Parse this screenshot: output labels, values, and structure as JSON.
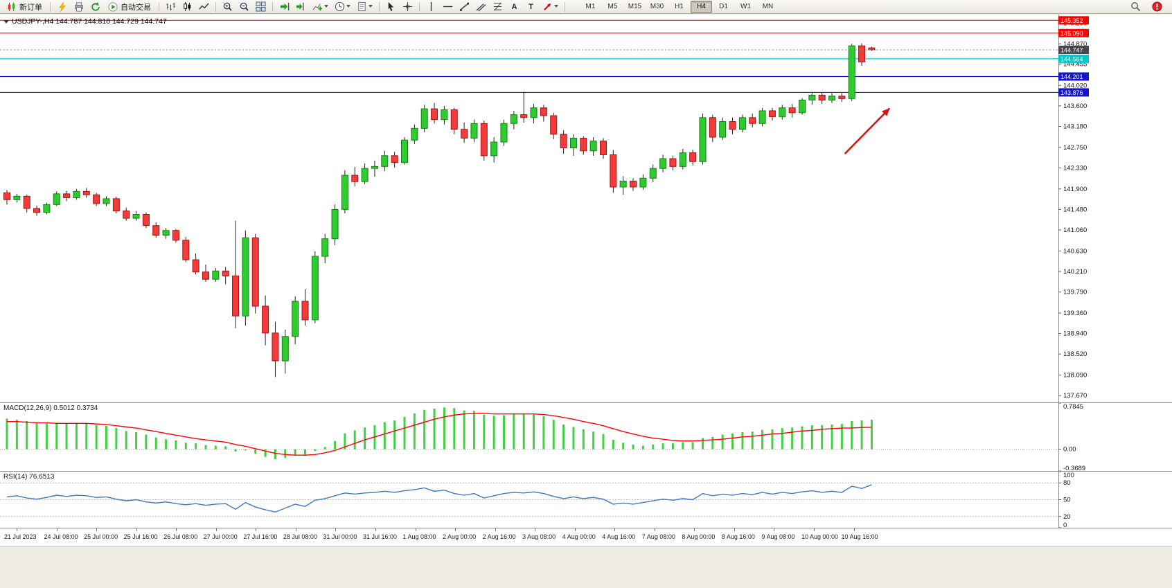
{
  "toolbar": {
    "new_order_label": "新订单",
    "auto_trading_label": "自动交易",
    "timeframes": [
      "M1",
      "M5",
      "M15",
      "M30",
      "H1",
      "H4",
      "D1",
      "W1",
      "MN"
    ],
    "active_timeframe": "H4",
    "icons": {
      "text_glyph": "A",
      "label_glyph": "T"
    }
  },
  "chart": {
    "symbol_title": "USDJPY-,H4 144.787 144.810 144.729 144.747",
    "symbol": "USDJPY-",
    "period": "H4",
    "ohlc_display": {
      "open": "144.787",
      "high": "144.810",
      "low": "144.729",
      "close": "144.747"
    }
  },
  "chart_data": [
    {
      "type": "candlestick",
      "title": "USDJPY-,H4",
      "ylim": [
        137.53,
        145.47
      ],
      "y_ticks": [
        "145.290",
        "144.870",
        "144.455",
        "144.020",
        "143.600",
        "143.180",
        "142.750",
        "142.330",
        "141.900",
        "141.480",
        "141.060",
        "140.630",
        "140.210",
        "139.790",
        "139.360",
        "138.940",
        "138.520",
        "138.090",
        "137.670"
      ],
      "x_tick_labels": [
        "21 Jul 2023",
        "24 Jul 08:00",
        "25 Jul 00:00",
        "25 Jul 16:00",
        "26 Jul 08:00",
        "27 Jul 00:00",
        "27 Jul 16:00",
        "28 Jul 08:00",
        "31 Jul 00:00",
        "31 Jul 16:00",
        "1 Aug 08:00",
        "2 Aug 00:00",
        "2 Aug 16:00",
        "3 Aug 08:00",
        "4 Aug 00:00",
        "4 Aug 16:00",
        "7 Aug 08:00",
        "8 Aug 00:00",
        "8 Aug 16:00",
        "9 Aug 08:00",
        "10 Aug 00:00",
        "10 Aug 16:00"
      ],
      "colors": {
        "up": "#2ecc2e",
        "up_border": "#157f15",
        "down": "#f23b3b",
        "down_border": "#a51212",
        "wick": "#222222"
      },
      "hlines": [
        {
          "price": 145.352,
          "color": "#ff0000",
          "label": "145.352"
        },
        {
          "price": 145.09,
          "color": "#ff0000",
          "label": "145.090"
        },
        {
          "price": 144.564,
          "color": "#00c8c8",
          "label": "144.564"
        },
        {
          "price": 144.201,
          "color": "#1414c8",
          "label": "144.201"
        },
        {
          "price": 143.876,
          "color": "#1414c8",
          "label": "143.876"
        }
      ],
      "current_price": {
        "value": 144.747,
        "label": "144.747",
        "color": "#46464e"
      },
      "arrow": {
        "bar_from": 84.3,
        "price_from": 142.62,
        "bar_to": 88.8,
        "price_to": 143.55,
        "color": "#dd1111"
      },
      "candles": [
        [
          141.82,
          141.88,
          141.58,
          141.68
        ],
        [
          141.68,
          141.8,
          141.62,
          141.75
        ],
        [
          141.75,
          141.78,
          141.42,
          141.5
        ],
        [
          141.5,
          141.56,
          141.35,
          141.42
        ],
        [
          141.42,
          141.62,
          141.38,
          141.58
        ],
        [
          141.58,
          141.85,
          141.55,
          141.8
        ],
        [
          141.8,
          141.86,
          141.65,
          141.72
        ],
        [
          141.72,
          141.9,
          141.68,
          141.85
        ],
        [
          141.85,
          141.92,
          141.72,
          141.78
        ],
        [
          141.78,
          141.82,
          141.55,
          141.6
        ],
        [
          141.6,
          141.75,
          141.55,
          141.7
        ],
        [
          141.7,
          141.74,
          141.4,
          141.45
        ],
        [
          141.45,
          141.52,
          141.25,
          141.3
        ],
        [
          141.3,
          141.45,
          141.25,
          141.38
        ],
        [
          141.38,
          141.42,
          141.1,
          141.15
        ],
        [
          141.15,
          141.22,
          140.9,
          140.95
        ],
        [
          140.95,
          141.1,
          140.88,
          141.05
        ],
        [
          141.05,
          141.08,
          140.8,
          140.85
        ],
        [
          140.85,
          140.92,
          140.4,
          140.45
        ],
        [
          140.45,
          140.58,
          140.15,
          140.2
        ],
        [
          140.2,
          140.35,
          140.0,
          140.05
        ],
        [
          140.05,
          140.28,
          140.0,
          140.22
        ],
        [
          140.22,
          140.3,
          139.95,
          140.12
        ],
        [
          140.12,
          141.25,
          139.05,
          139.3
        ],
        [
          139.3,
          141.05,
          139.1,
          140.9
        ],
        [
          140.9,
          140.98,
          139.35,
          139.5
        ],
        [
          139.5,
          139.72,
          138.7,
          138.95
        ],
        [
          138.95,
          139.18,
          138.05,
          138.38
        ],
        [
          138.38,
          139.02,
          138.12,
          138.88
        ],
        [
          138.88,
          139.7,
          138.72,
          139.6
        ],
        [
          139.6,
          139.85,
          139.1,
          139.22
        ],
        [
          139.22,
          140.62,
          139.15,
          140.52
        ],
        [
          140.52,
          140.98,
          140.38,
          140.88
        ],
        [
          140.88,
          141.58,
          140.75,
          141.48
        ],
        [
          141.48,
          142.28,
          141.4,
          142.18
        ],
        [
          142.18,
          142.35,
          141.95,
          142.05
        ],
        [
          142.05,
          142.42,
          142.0,
          142.32
        ],
        [
          142.32,
          142.48,
          142.15,
          142.36
        ],
        [
          142.36,
          142.68,
          142.26,
          142.58
        ],
        [
          142.58,
          142.66,
          142.34,
          142.44
        ],
        [
          142.44,
          142.96,
          142.4,
          142.9
        ],
        [
          142.9,
          143.22,
          142.82,
          143.14
        ],
        [
          143.14,
          143.62,
          143.06,
          143.54
        ],
        [
          143.54,
          143.66,
          143.24,
          143.32
        ],
        [
          143.32,
          143.6,
          143.22,
          143.52
        ],
        [
          143.52,
          143.56,
          143.02,
          143.12
        ],
        [
          143.12,
          143.26,
          142.84,
          142.94
        ],
        [
          142.94,
          143.32,
          142.86,
          143.24
        ],
        [
          143.24,
          143.3,
          142.48,
          142.58
        ],
        [
          142.58,
          142.96,
          142.44,
          142.86
        ],
        [
          142.86,
          143.32,
          142.78,
          143.24
        ],
        [
          143.24,
          143.5,
          143.12,
          143.42
        ],
        [
          143.42,
          143.89,
          143.26,
          143.36
        ],
        [
          143.36,
          143.64,
          143.24,
          143.56
        ],
        [
          143.56,
          143.62,
          143.28,
          143.4
        ],
        [
          143.4,
          143.46,
          142.92,
          143.02
        ],
        [
          143.02,
          143.1,
          142.62,
          142.74
        ],
        [
          142.74,
          143.02,
          142.58,
          142.94
        ],
        [
          142.94,
          142.98,
          142.6,
          142.68
        ],
        [
          142.68,
          142.96,
          142.58,
          142.88
        ],
        [
          142.88,
          142.94,
          142.52,
          142.6
        ],
        [
          142.6,
          142.7,
          141.82,
          141.94
        ],
        [
          141.94,
          142.16,
          141.78,
          142.06
        ],
        [
          142.06,
          142.12,
          141.86,
          141.94
        ],
        [
          141.94,
          142.2,
          141.88,
          142.12
        ],
        [
          142.12,
          142.4,
          142.04,
          142.32
        ],
        [
          142.32,
          142.6,
          142.24,
          142.52
        ],
        [
          142.52,
          142.58,
          142.28,
          142.36
        ],
        [
          142.36,
          142.72,
          142.3,
          142.64
        ],
        [
          142.64,
          142.7,
          142.38,
          142.46
        ],
        [
          142.46,
          143.44,
          142.4,
          143.36
        ],
        [
          143.36,
          143.42,
          142.86,
          142.96
        ],
        [
          142.96,
          143.36,
          142.9,
          143.28
        ],
        [
          143.28,
          143.36,
          143.02,
          143.12
        ],
        [
          143.12,
          143.42,
          143.06,
          143.36
        ],
        [
          143.36,
          143.44,
          143.16,
          143.24
        ],
        [
          143.24,
          143.56,
          143.18,
          143.5
        ],
        [
          143.5,
          143.56,
          143.3,
          143.38
        ],
        [
          143.38,
          143.62,
          143.32,
          143.56
        ],
        [
          143.56,
          143.64,
          143.36,
          143.46
        ],
        [
          143.46,
          143.76,
          143.42,
          143.72
        ],
        [
          143.72,
          143.86,
          143.62,
          143.82
        ],
        [
          143.82,
          143.87,
          143.64,
          143.72
        ],
        [
          143.72,
          143.86,
          143.66,
          143.8
        ],
        [
          143.8,
          143.86,
          143.68,
          143.75
        ],
        [
          143.75,
          144.87,
          143.7,
          144.83
        ],
        [
          144.83,
          144.88,
          144.42,
          144.5
        ],
        [
          144.787,
          144.81,
          144.729,
          144.747
        ]
      ]
    },
    {
      "type": "bar",
      "indicator": "MACD(12,26,9)",
      "label": "MACD(12,26,9) 0.5012 0.3734",
      "ylim": [
        -0.3689,
        0.7845
      ],
      "y_ticks": [
        "0.7845",
        "0.00",
        "-0.3689"
      ],
      "colors": {
        "histogram": "#44d044",
        "signal": "#ff0000"
      },
      "values": [
        0.52,
        0.5,
        0.48,
        0.45,
        0.44,
        0.45,
        0.44,
        0.45,
        0.44,
        0.41,
        0.4,
        0.36,
        0.31,
        0.29,
        0.25,
        0.2,
        0.17,
        0.15,
        0.11,
        0.1,
        0.07,
        0.06,
        0.05,
        -0.04,
        -0.02,
        -0.08,
        -0.13,
        -0.17,
        -0.15,
        -0.1,
        -0.11,
        -0.03,
        0.04,
        0.14,
        0.27,
        0.32,
        0.37,
        0.41,
        0.46,
        0.49,
        0.55,
        0.61,
        0.67,
        0.69,
        0.71,
        0.7,
        0.66,
        0.65,
        0.59,
        0.57,
        0.58,
        0.6,
        0.61,
        0.6,
        0.56,
        0.5,
        0.42,
        0.38,
        0.34,
        0.3,
        0.26,
        0.16,
        0.11,
        0.08,
        0.06,
        0.08,
        0.1,
        0.1,
        0.12,
        0.12,
        0.19,
        0.21,
        0.25,
        0.27,
        0.29,
        0.3,
        0.33,
        0.34,
        0.36,
        0.37,
        0.39,
        0.41,
        0.41,
        0.42,
        0.43,
        0.48,
        0.49,
        0.5012
      ],
      "signal": [
        0.47,
        0.47,
        0.46,
        0.45,
        0.45,
        0.44,
        0.44,
        0.44,
        0.44,
        0.43,
        0.42,
        0.4,
        0.38,
        0.36,
        0.33,
        0.3,
        0.27,
        0.24,
        0.21,
        0.18,
        0.16,
        0.14,
        0.12,
        0.08,
        0.05,
        0.01,
        -0.03,
        -0.07,
        -0.09,
        -0.1,
        -0.1,
        -0.09,
        -0.06,
        -0.02,
        0.04,
        0.1,
        0.16,
        0.21,
        0.26,
        0.31,
        0.36,
        0.41,
        0.46,
        0.51,
        0.55,
        0.58,
        0.6,
        0.61,
        0.61,
        0.6,
        0.6,
        0.6,
        0.6,
        0.6,
        0.59,
        0.57,
        0.54,
        0.51,
        0.47,
        0.44,
        0.4,
        0.35,
        0.3,
        0.26,
        0.22,
        0.19,
        0.17,
        0.15,
        0.14,
        0.14,
        0.15,
        0.16,
        0.17,
        0.19,
        0.21,
        0.22,
        0.24,
        0.26,
        0.27,
        0.29,
        0.31,
        0.32,
        0.34,
        0.35,
        0.36,
        0.36,
        0.37,
        0.3734
      ]
    },
    {
      "type": "line",
      "indicator": "RSI(14)",
      "label": "RSI(14) 76.6513",
      "ylim": [
        0,
        100
      ],
      "y_ticks": [
        "100",
        "80",
        "50",
        "20",
        "0"
      ],
      "levels": [
        80,
        50,
        20
      ],
      "colors": {
        "line": "#4076c0"
      },
      "values": [
        55,
        57,
        53,
        51,
        54,
        58,
        56,
        58,
        57,
        54,
        55,
        51,
        48,
        50,
        46,
        44,
        46,
        43,
        41,
        43,
        40,
        42,
        43,
        33,
        45,
        37,
        32,
        28,
        35,
        42,
        38,
        49,
        52,
        57,
        62,
        60,
        62,
        63,
        65,
        63,
        66,
        68,
        71,
        65,
        67,
        61,
        58,
        61,
        53,
        57,
        61,
        63,
        62,
        64,
        61,
        56,
        52,
        55,
        52,
        54,
        51,
        42,
        44,
        42,
        45,
        48,
        51,
        49,
        52,
        50,
        61,
        57,
        60,
        58,
        61,
        59,
        63,
        60,
        63,
        61,
        64,
        66,
        63,
        65,
        63,
        74,
        70,
        76.6513
      ]
    }
  ]
}
